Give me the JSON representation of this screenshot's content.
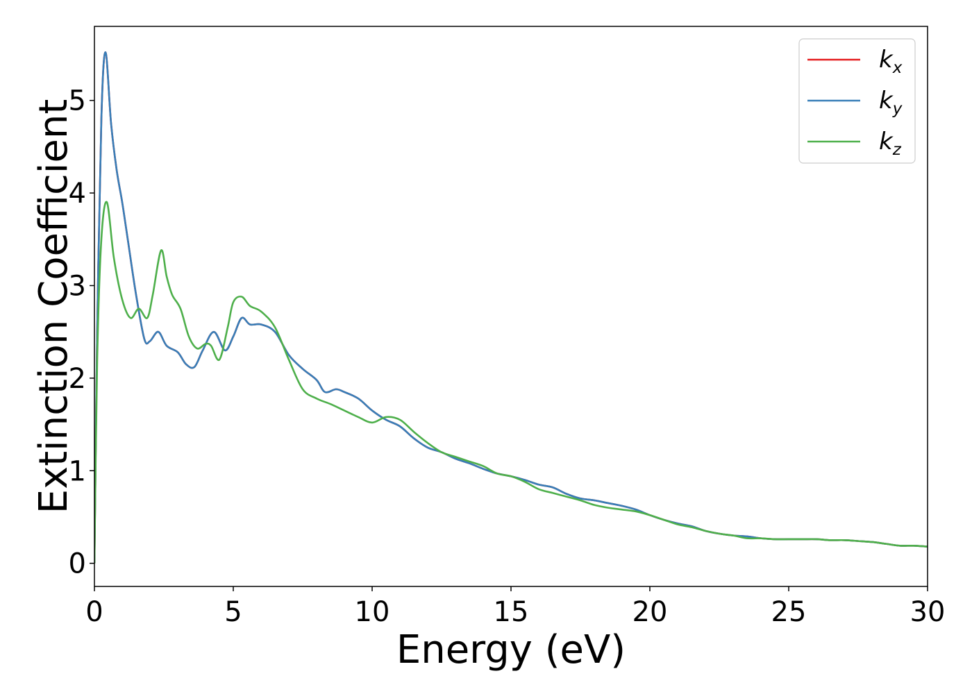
{
  "chart_data": {
    "type": "line",
    "title": "",
    "xlabel": "Energy (eV)",
    "ylabel": "Extinction Coefficient",
    "xlim": [
      0,
      30
    ],
    "ylim": [
      -0.25,
      5.8
    ],
    "xticks": [
      0,
      5,
      10,
      15,
      20,
      25,
      30
    ],
    "yticks": [
      0,
      1,
      2,
      3,
      4,
      5
    ],
    "xtick_labels": [
      "0",
      "5",
      "10",
      "15",
      "20",
      "25",
      "30"
    ],
    "ytick_labels": [
      "0",
      "1",
      "2",
      "3",
      "4",
      "5"
    ],
    "grid": false,
    "legend_position": "top-right",
    "series": [
      {
        "name": "k_x",
        "label_base": "k",
        "label_sub": "x",
        "color": "#e41a1c",
        "x": [
          0,
          0.1,
          0.25,
          0.4,
          0.6,
          0.8,
          1.0,
          1.2,
          1.5,
          1.8,
          2.0,
          2.3,
          2.6,
          3.0,
          3.3,
          3.6,
          3.9,
          4.3,
          4.7,
          5.0,
          5.3,
          5.6,
          6.0,
          6.5,
          7.0,
          7.5,
          8.0,
          8.3,
          8.7,
          9.0,
          9.5,
          10.0,
          10.5,
          11.0,
          11.5,
          12.0,
          12.5,
          13.0,
          13.5,
          14.0,
          14.5,
          15.0,
          15.5,
          16.0,
          16.5,
          17.0,
          17.5,
          18.0,
          18.5,
          19.0,
          19.5,
          20.0,
          20.5,
          21.0,
          21.5,
          22.0,
          22.5,
          23.0,
          23.5,
          24.0,
          24.5,
          25.0,
          25.5,
          26.0,
          26.5,
          27.0,
          27.5,
          28.0,
          28.5,
          29.0,
          29.5,
          30.0
        ],
        "y": [
          0,
          2.5,
          4.8,
          5.52,
          4.75,
          4.25,
          3.9,
          3.5,
          2.9,
          2.42,
          2.4,
          2.5,
          2.35,
          2.28,
          2.15,
          2.12,
          2.3,
          2.5,
          2.3,
          2.45,
          2.65,
          2.58,
          2.58,
          2.5,
          2.25,
          2.1,
          1.98,
          1.85,
          1.88,
          1.85,
          1.78,
          1.65,
          1.55,
          1.48,
          1.35,
          1.25,
          1.2,
          1.13,
          1.08,
          1.02,
          0.97,
          0.94,
          0.9,
          0.85,
          0.82,
          0.75,
          0.7,
          0.68,
          0.65,
          0.62,
          0.58,
          0.52,
          0.47,
          0.43,
          0.4,
          0.35,
          0.32,
          0.3,
          0.29,
          0.27,
          0.26,
          0.26,
          0.26,
          0.26,
          0.25,
          0.25,
          0.24,
          0.23,
          0.21,
          0.19,
          0.19,
          0.18
        ]
      },
      {
        "name": "k_y",
        "label_base": "k",
        "label_sub": "y",
        "color": "#377eb8",
        "x": [
          0,
          0.1,
          0.25,
          0.4,
          0.6,
          0.8,
          1.0,
          1.2,
          1.5,
          1.8,
          2.0,
          2.3,
          2.6,
          3.0,
          3.3,
          3.6,
          3.9,
          4.3,
          4.7,
          5.0,
          5.3,
          5.6,
          6.0,
          6.5,
          7.0,
          7.5,
          8.0,
          8.3,
          8.7,
          9.0,
          9.5,
          10.0,
          10.5,
          11.0,
          11.5,
          12.0,
          12.5,
          13.0,
          13.5,
          14.0,
          14.5,
          15.0,
          15.5,
          16.0,
          16.5,
          17.0,
          17.5,
          18.0,
          18.5,
          19.0,
          19.5,
          20.0,
          20.5,
          21.0,
          21.5,
          22.0,
          22.5,
          23.0,
          23.5,
          24.0,
          24.5,
          25.0,
          25.5,
          26.0,
          26.5,
          27.0,
          27.5,
          28.0,
          28.5,
          29.0,
          29.5,
          30.0
        ],
        "y": [
          0,
          2.5,
          4.8,
          5.52,
          4.75,
          4.25,
          3.9,
          3.5,
          2.9,
          2.42,
          2.4,
          2.5,
          2.35,
          2.28,
          2.15,
          2.12,
          2.3,
          2.5,
          2.3,
          2.45,
          2.65,
          2.58,
          2.58,
          2.5,
          2.25,
          2.1,
          1.98,
          1.85,
          1.88,
          1.85,
          1.78,
          1.65,
          1.55,
          1.48,
          1.35,
          1.25,
          1.2,
          1.13,
          1.08,
          1.02,
          0.97,
          0.94,
          0.9,
          0.85,
          0.82,
          0.75,
          0.7,
          0.68,
          0.65,
          0.62,
          0.58,
          0.52,
          0.47,
          0.43,
          0.4,
          0.35,
          0.32,
          0.3,
          0.29,
          0.27,
          0.26,
          0.26,
          0.26,
          0.26,
          0.25,
          0.25,
          0.24,
          0.23,
          0.21,
          0.19,
          0.19,
          0.18
        ]
      },
      {
        "name": "k_z",
        "label_base": "k",
        "label_sub": "z",
        "color": "#4daf4a",
        "x": [
          0,
          0.1,
          0.25,
          0.45,
          0.7,
          1.0,
          1.3,
          1.6,
          1.9,
          2.1,
          2.4,
          2.6,
          2.8,
          3.1,
          3.4,
          3.7,
          4.0,
          4.2,
          4.5,
          4.8,
          5.0,
          5.3,
          5.6,
          6.0,
          6.5,
          7.0,
          7.5,
          8.0,
          8.5,
          9.0,
          9.5,
          10.0,
          10.5,
          11.0,
          11.5,
          12.0,
          12.5,
          13.0,
          13.5,
          14.0,
          14.5,
          15.0,
          15.5,
          16.0,
          16.5,
          17.0,
          17.5,
          18.0,
          18.5,
          19.0,
          19.5,
          20.0,
          20.5,
          21.0,
          21.5,
          22.0,
          22.5,
          23.0,
          23.5,
          24.0,
          24.5,
          25.0,
          25.5,
          26.0,
          26.5,
          27.0,
          27.5,
          28.0,
          28.5,
          29.0,
          29.5,
          30.0
        ],
        "y": [
          0,
          2.2,
          3.5,
          3.9,
          3.3,
          2.85,
          2.65,
          2.75,
          2.65,
          2.9,
          3.38,
          3.1,
          2.9,
          2.75,
          2.45,
          2.32,
          2.37,
          2.35,
          2.2,
          2.55,
          2.82,
          2.88,
          2.78,
          2.72,
          2.55,
          2.2,
          1.88,
          1.78,
          1.72,
          1.65,
          1.58,
          1.52,
          1.58,
          1.55,
          1.42,
          1.3,
          1.2,
          1.15,
          1.1,
          1.05,
          0.97,
          0.94,
          0.88,
          0.8,
          0.76,
          0.72,
          0.68,
          0.63,
          0.6,
          0.58,
          0.56,
          0.52,
          0.47,
          0.42,
          0.39,
          0.35,
          0.32,
          0.3,
          0.27,
          0.27,
          0.26,
          0.26,
          0.26,
          0.26,
          0.25,
          0.25,
          0.24,
          0.23,
          0.21,
          0.19,
          0.19,
          0.18
        ]
      }
    ]
  }
}
